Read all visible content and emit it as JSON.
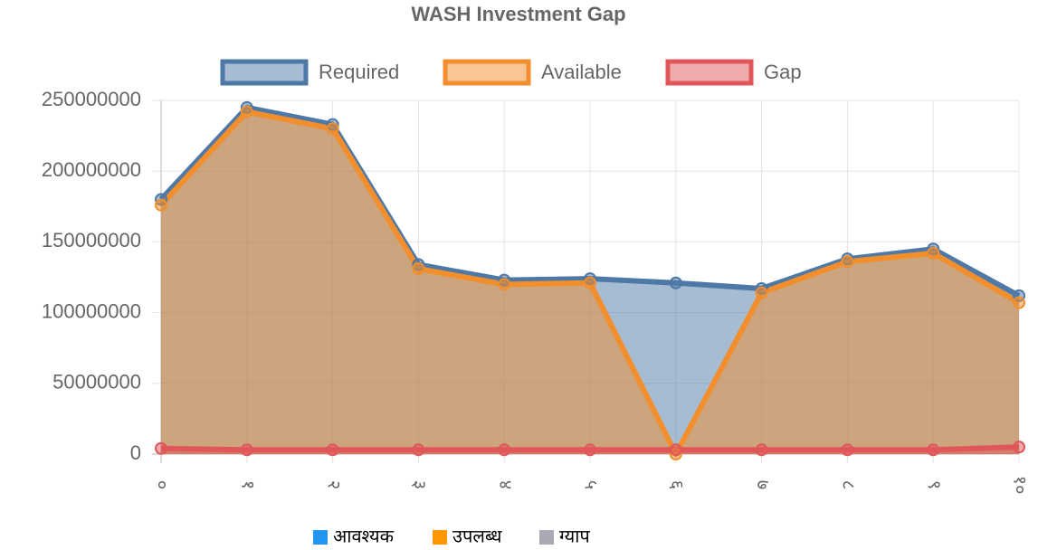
{
  "chart_data": {
    "type": "line",
    "title": "WASH Investment Gap",
    "categories": [
      "०",
      "१",
      "२",
      "३",
      "४",
      "५",
      "६",
      "७",
      "८",
      "९",
      "१०"
    ],
    "series": [
      {
        "name": "Required",
        "color": "#4e79a7",
        "values": [
          180000000,
          245000000,
          233000000,
          134000000,
          123000000,
          124000000,
          121000000,
          117000000,
          138000000,
          145000000,
          112000000
        ]
      },
      {
        "name": "Available",
        "color": "#f28e2b",
        "values": [
          176000000,
          242000000,
          230000000,
          131000000,
          120000000,
          121000000,
          0,
          114000000,
          136000000,
          142000000,
          107000000
        ]
      },
      {
        "name": "Gap",
        "color": "#e15759",
        "values": [
          4000000,
          3000000,
          3000000,
          3000000,
          3000000,
          3000000,
          3000000,
          3000000,
          3000000,
          3000000,
          5000000
        ]
      }
    ],
    "ylim": [
      0,
      250000000
    ],
    "yticks": [
      0,
      50000000,
      100000000,
      150000000,
      200000000,
      250000000
    ],
    "grid": true,
    "fill": true,
    "legend": "top",
    "footer_legend": [
      {
        "name": "आवश्यक",
        "color": "#2196f3"
      },
      {
        "name": "उपलब्ध",
        "color": "#ff9800"
      },
      {
        "name": "ग्याप",
        "color": "#a9a9b3"
      }
    ]
  }
}
